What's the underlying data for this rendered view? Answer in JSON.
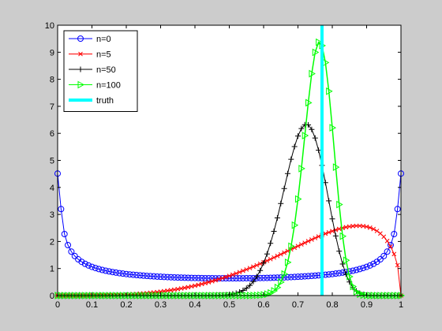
{
  "chart_data": {
    "type": "line",
    "xlim": [
      0,
      1
    ],
    "ylim": [
      0,
      10
    ],
    "xticks": [
      0,
      0.1,
      0.2,
      0.3,
      0.4,
      0.5,
      0.6,
      0.7,
      0.8,
      0.9,
      1
    ],
    "xtick_labels": [
      "0",
      "0.1",
      "0.2",
      "0.3",
      "0.4",
      "0.5",
      "0.6",
      "0.7",
      "0.8",
      "0.9",
      "1"
    ],
    "yticks": [
      0,
      1,
      2,
      3,
      4,
      5,
      6,
      7,
      8,
      9,
      10
    ],
    "ytick_labels": [
      "0",
      "1",
      "2",
      "3",
      "4",
      "5",
      "6",
      "7",
      "8",
      "9",
      "10"
    ],
    "grid": false,
    "legend_position": "top-left",
    "series": [
      {
        "name": "n=0",
        "color": "#0000ff",
        "marker": "circle",
        "distribution": "beta",
        "a": 0.5,
        "b": 0.5
      },
      {
        "name": "n=5",
        "color": "#ff0000",
        "marker": "x",
        "distribution": "beta",
        "a": 4.5,
        "b": 1.5
      },
      {
        "name": "n=50",
        "color": "#000000",
        "marker": "plus",
        "distribution": "beta",
        "a": 36.5,
        "b": 14.5
      },
      {
        "name": "n=100",
        "color": "#00ff00",
        "marker": "triangle-right",
        "distribution": "beta",
        "a": 76.5,
        "b": 24.5
      },
      {
        "name": "truth",
        "color": "#00ffff",
        "marker": "none",
        "vertical_line_x": 0.77
      }
    ]
  }
}
